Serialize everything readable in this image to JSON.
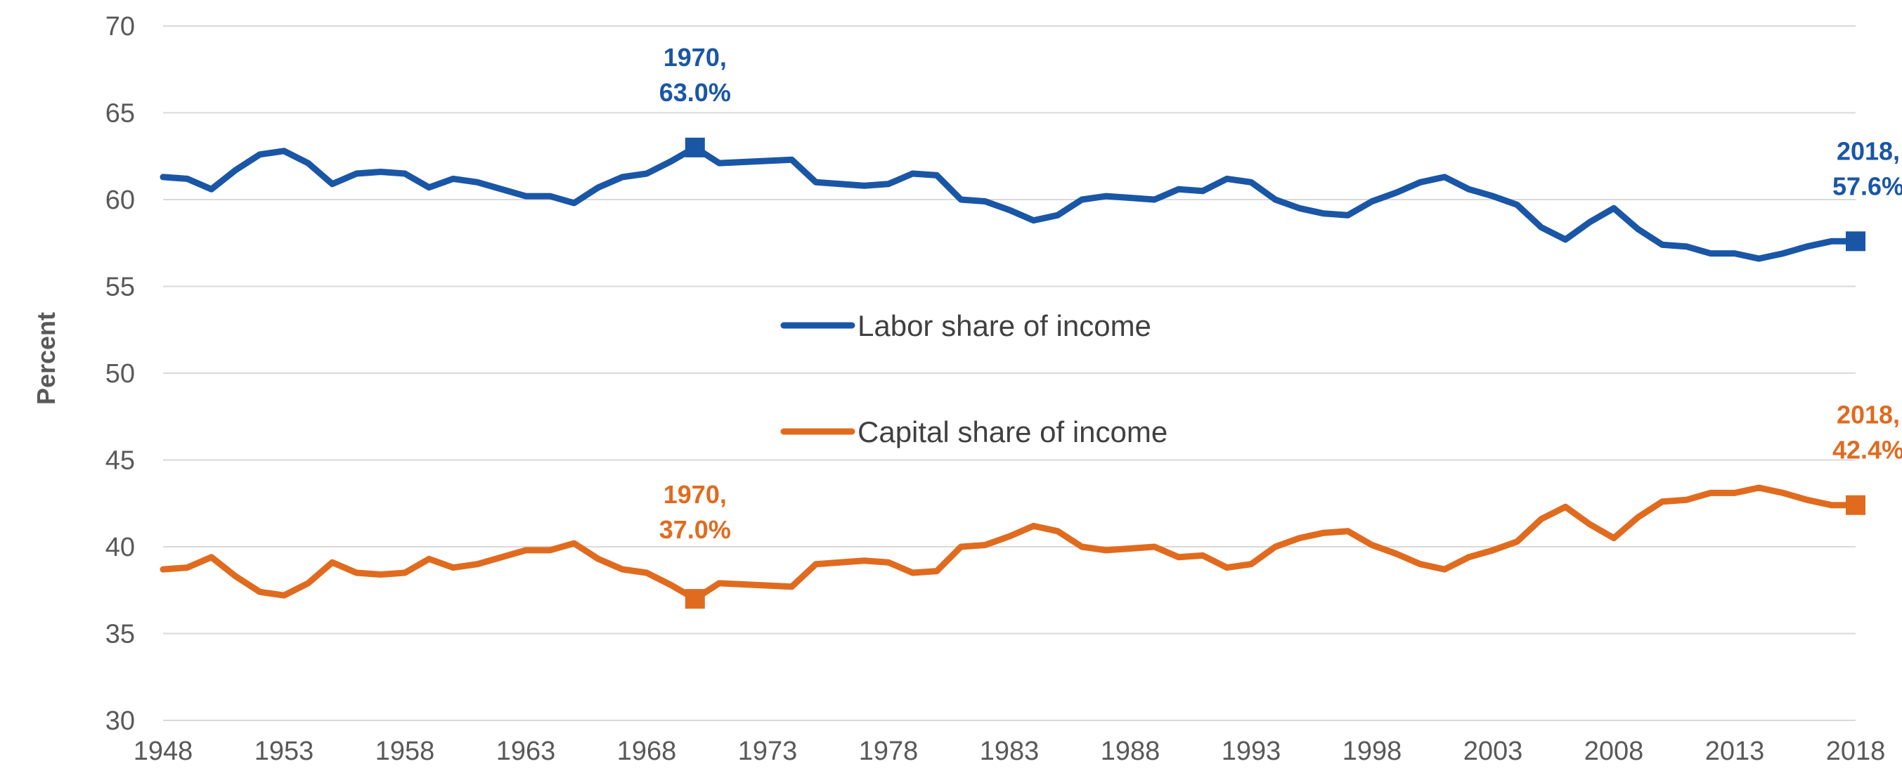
{
  "chart_data": {
    "type": "line",
    "title": "",
    "xlabel": "",
    "ylabel": "Percent",
    "ylim": [
      30,
      70
    ],
    "yticks": [
      30,
      35,
      40,
      45,
      50,
      55,
      60,
      65,
      70
    ],
    "xticks": [
      1948,
      1953,
      1958,
      1963,
      1968,
      1973,
      1978,
      1983,
      1988,
      1993,
      1998,
      2003,
      2008,
      2013,
      2018
    ],
    "xlim": [
      1948,
      2018
    ],
    "grid": "horizontal",
    "legend_placement": "center",
    "x": [
      1948,
      1949,
      1950,
      1951,
      1952,
      1953,
      1954,
      1955,
      1956,
      1957,
      1958,
      1959,
      1960,
      1961,
      1962,
      1963,
      1964,
      1965,
      1966,
      1967,
      1968,
      1969,
      1970,
      1971,
      1974,
      1975,
      1976,
      1977,
      1978,
      1979,
      1980,
      1981,
      1982,
      1983,
      1984,
      1985,
      1986,
      1987,
      1988,
      1989,
      1990,
      1991,
      1992,
      1993,
      1994,
      1995,
      1996,
      1997,
      1998,
      1999,
      2000,
      2001,
      2002,
      2003,
      2004,
      2005,
      2006,
      2007,
      2008,
      2009,
      2010,
      2011,
      2012,
      2013,
      2014,
      2015,
      2016,
      2017,
      2018
    ],
    "series": [
      {
        "name": "Labor share of income",
        "color": "#1a56a6",
        "values": [
          61.3,
          61.2,
          60.6,
          61.7,
          62.6,
          62.8,
          62.1,
          60.9,
          61.5,
          61.6,
          61.5,
          60.7,
          61.2,
          61.0,
          60.6,
          60.2,
          60.2,
          59.8,
          60.7,
          61.3,
          61.5,
          62.2,
          63.0,
          62.1,
          62.3,
          61.0,
          60.9,
          60.8,
          60.9,
          61.5,
          61.4,
          60.0,
          59.9,
          59.4,
          58.8,
          59.1,
          60.0,
          60.2,
          60.1,
          60.0,
          60.6,
          60.5,
          61.2,
          61.0,
          60.0,
          59.5,
          59.2,
          59.1,
          59.9,
          60.4,
          61.0,
          61.3,
          60.6,
          60.2,
          59.7,
          58.4,
          57.7,
          58.7,
          59.5,
          58.3,
          57.4,
          57.3,
          56.9,
          56.9,
          56.6,
          56.9,
          57.3,
          57.6,
          57.6
        ]
      },
      {
        "name": "Capital share of income",
        "color": "#e06b1f",
        "values": [
          38.7,
          38.8,
          39.4,
          38.3,
          37.4,
          37.2,
          37.9,
          39.1,
          38.5,
          38.4,
          38.5,
          39.3,
          38.8,
          39.0,
          39.4,
          39.8,
          39.8,
          40.2,
          39.3,
          38.7,
          38.5,
          37.8,
          37.0,
          37.9,
          37.7,
          39.0,
          39.1,
          39.2,
          39.1,
          38.5,
          38.6,
          40.0,
          40.1,
          40.6,
          41.2,
          40.9,
          40.0,
          39.8,
          39.9,
          40.0,
          39.4,
          39.5,
          38.8,
          39.0,
          40.0,
          40.5,
          40.8,
          40.9,
          40.1,
          39.6,
          39.0,
          38.7,
          39.4,
          39.8,
          40.3,
          41.6,
          42.3,
          41.3,
          40.5,
          41.7,
          42.6,
          42.7,
          43.1,
          43.1,
          43.4,
          43.1,
          42.7,
          42.4,
          42.4
        ]
      }
    ],
    "annotations": [
      {
        "series": 0,
        "x": 1970,
        "y": 63.0,
        "line1": "1970,",
        "line2": "63.0%"
      },
      {
        "series": 0,
        "x": 2018,
        "y": 57.6,
        "line1": "2018,",
        "line2": "57.6%"
      },
      {
        "series": 1,
        "x": 1970,
        "y": 37.0,
        "line1": "1970,",
        "line2": "37.0%"
      },
      {
        "series": 1,
        "x": 2018,
        "y": 42.4,
        "line1": "2018,",
        "line2": "42.4%"
      }
    ]
  }
}
